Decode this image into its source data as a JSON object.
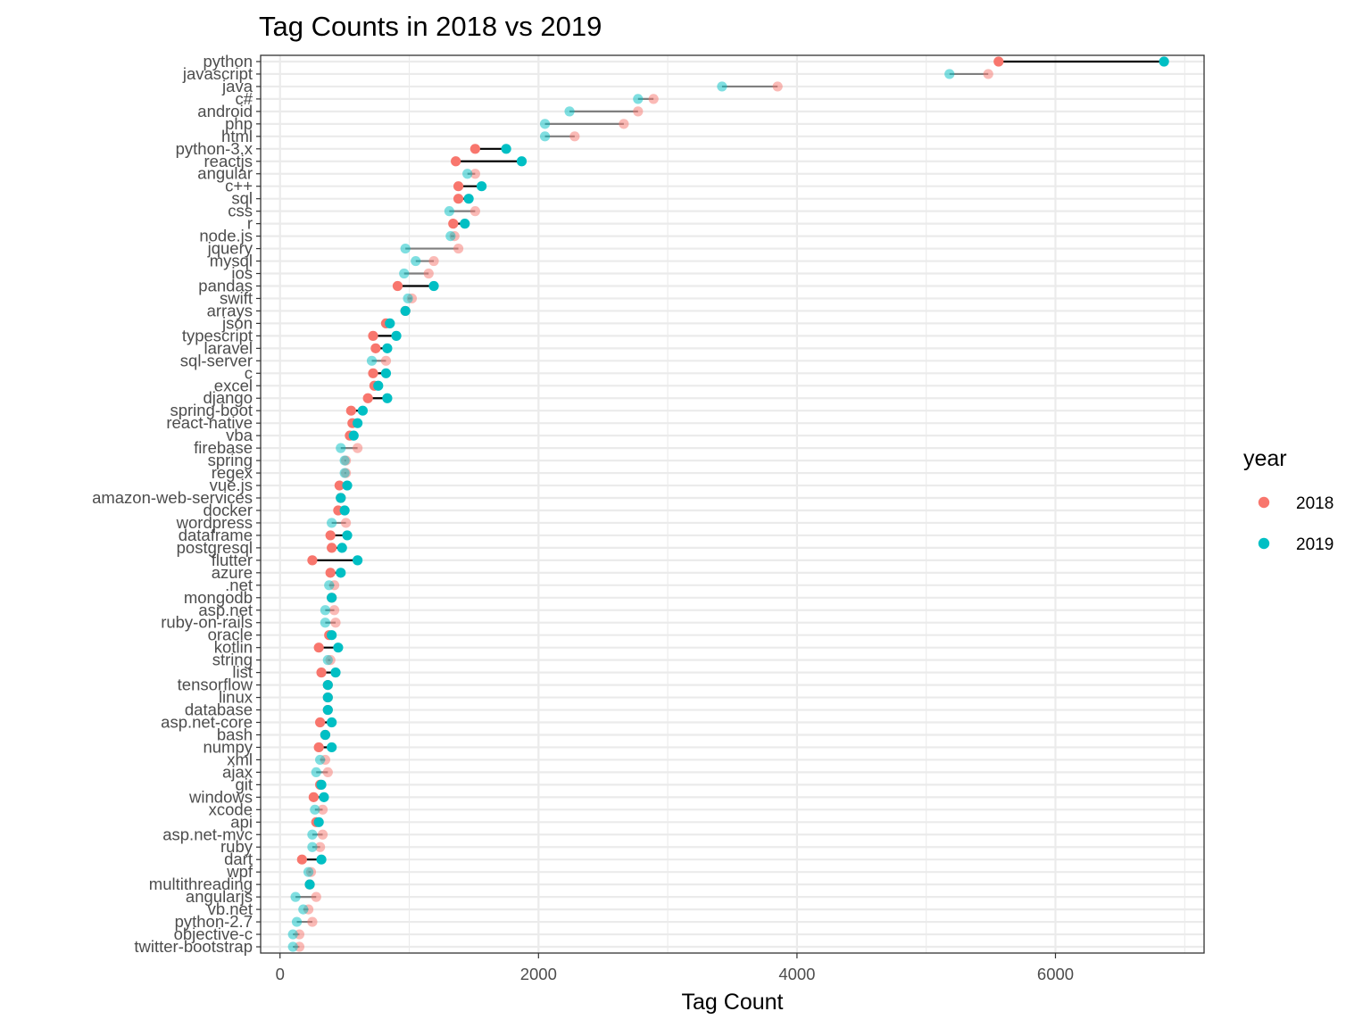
{
  "chart_data": {
    "type": "scatter",
    "subtype": "dumbbell",
    "title": "Tag Counts in 2018 vs 2019",
    "xlabel": "Tag Count",
    "ylabel": "",
    "xlim": [
      -150,
      7150
    ],
    "xticks": [
      0,
      2000,
      4000,
      6000
    ],
    "grid": true,
    "legend": {
      "title": "year",
      "position": "right",
      "entries": [
        "2018",
        "2019"
      ]
    },
    "colors": {
      "2018": "#F8766D",
      "2019": "#00BFC4",
      "segment_up": "#000000",
      "segment_down": "#7f7f7f"
    },
    "categories": [
      "python",
      "javascript",
      "java",
      "c#",
      "android",
      "php",
      "html",
      "python-3.x",
      "reactjs",
      "angular",
      "c++",
      "sql",
      "css",
      "r",
      "node.js",
      "jquery",
      "mysql",
      "ios",
      "pandas",
      "swift",
      "arrays",
      "json",
      "typescript",
      "laravel",
      "sql-server",
      "c",
      "excel",
      "django",
      "spring-boot",
      "react-native",
      "vba",
      "firebase",
      "spring",
      "regex",
      "vue.js",
      "amazon-web-services",
      "docker",
      "wordpress",
      "dataframe",
      "postgresql",
      "flutter",
      "azure",
      ".net",
      "mongodb",
      "asp.net",
      "ruby-on-rails",
      "oracle",
      "kotlin",
      "string",
      "list",
      "tensorflow",
      "linux",
      "database",
      "asp.net-core",
      "bash",
      "numpy",
      "xml",
      "ajax",
      "git",
      "windows",
      "xcode",
      "api",
      "asp.net-mvc",
      "ruby",
      "dart",
      "wpf",
      "multithreading",
      "angularjs",
      "vb.net",
      "python-2.7",
      "objective-c",
      "twitter-bootstrap"
    ],
    "series": [
      {
        "name": "2018",
        "values": [
          5560,
          5480,
          3850,
          2890,
          2770,
          2660,
          2280,
          1510,
          1360,
          1510,
          1380,
          1380,
          1510,
          1340,
          1350,
          1380,
          1190,
          1150,
          910,
          1020,
          970,
          820,
          720,
          740,
          820,
          720,
          730,
          680,
          550,
          560,
          540,
          600,
          510,
          510,
          460,
          470,
          450,
          510,
          390,
          400,
          250,
          390,
          420,
          400,
          420,
          430,
          380,
          300,
          390,
          320,
          370,
          370,
          370,
          310,
          350,
          300,
          350,
          370,
          310,
          260,
          330,
          280,
          330,
          310,
          170,
          240,
          230,
          280,
          220,
          250,
          150,
          150
        ]
      },
      {
        "name": "2019",
        "values": [
          6840,
          5180,
          3420,
          2770,
          2240,
          2050,
          2050,
          1750,
          1870,
          1450,
          1560,
          1460,
          1310,
          1430,
          1320,
          970,
          1050,
          960,
          1190,
          990,
          970,
          850,
          900,
          830,
          710,
          820,
          760,
          830,
          640,
          600,
          570,
          470,
          500,
          500,
          520,
          470,
          500,
          400,
          520,
          480,
          600,
          470,
          380,
          400,
          350,
          350,
          400,
          450,
          370,
          430,
          370,
          370,
          370,
          400,
          350,
          400,
          310,
          280,
          320,
          340,
          270,
          300,
          250,
          250,
          320,
          220,
          230,
          120,
          180,
          130,
          100,
          100
        ]
      }
    ]
  }
}
